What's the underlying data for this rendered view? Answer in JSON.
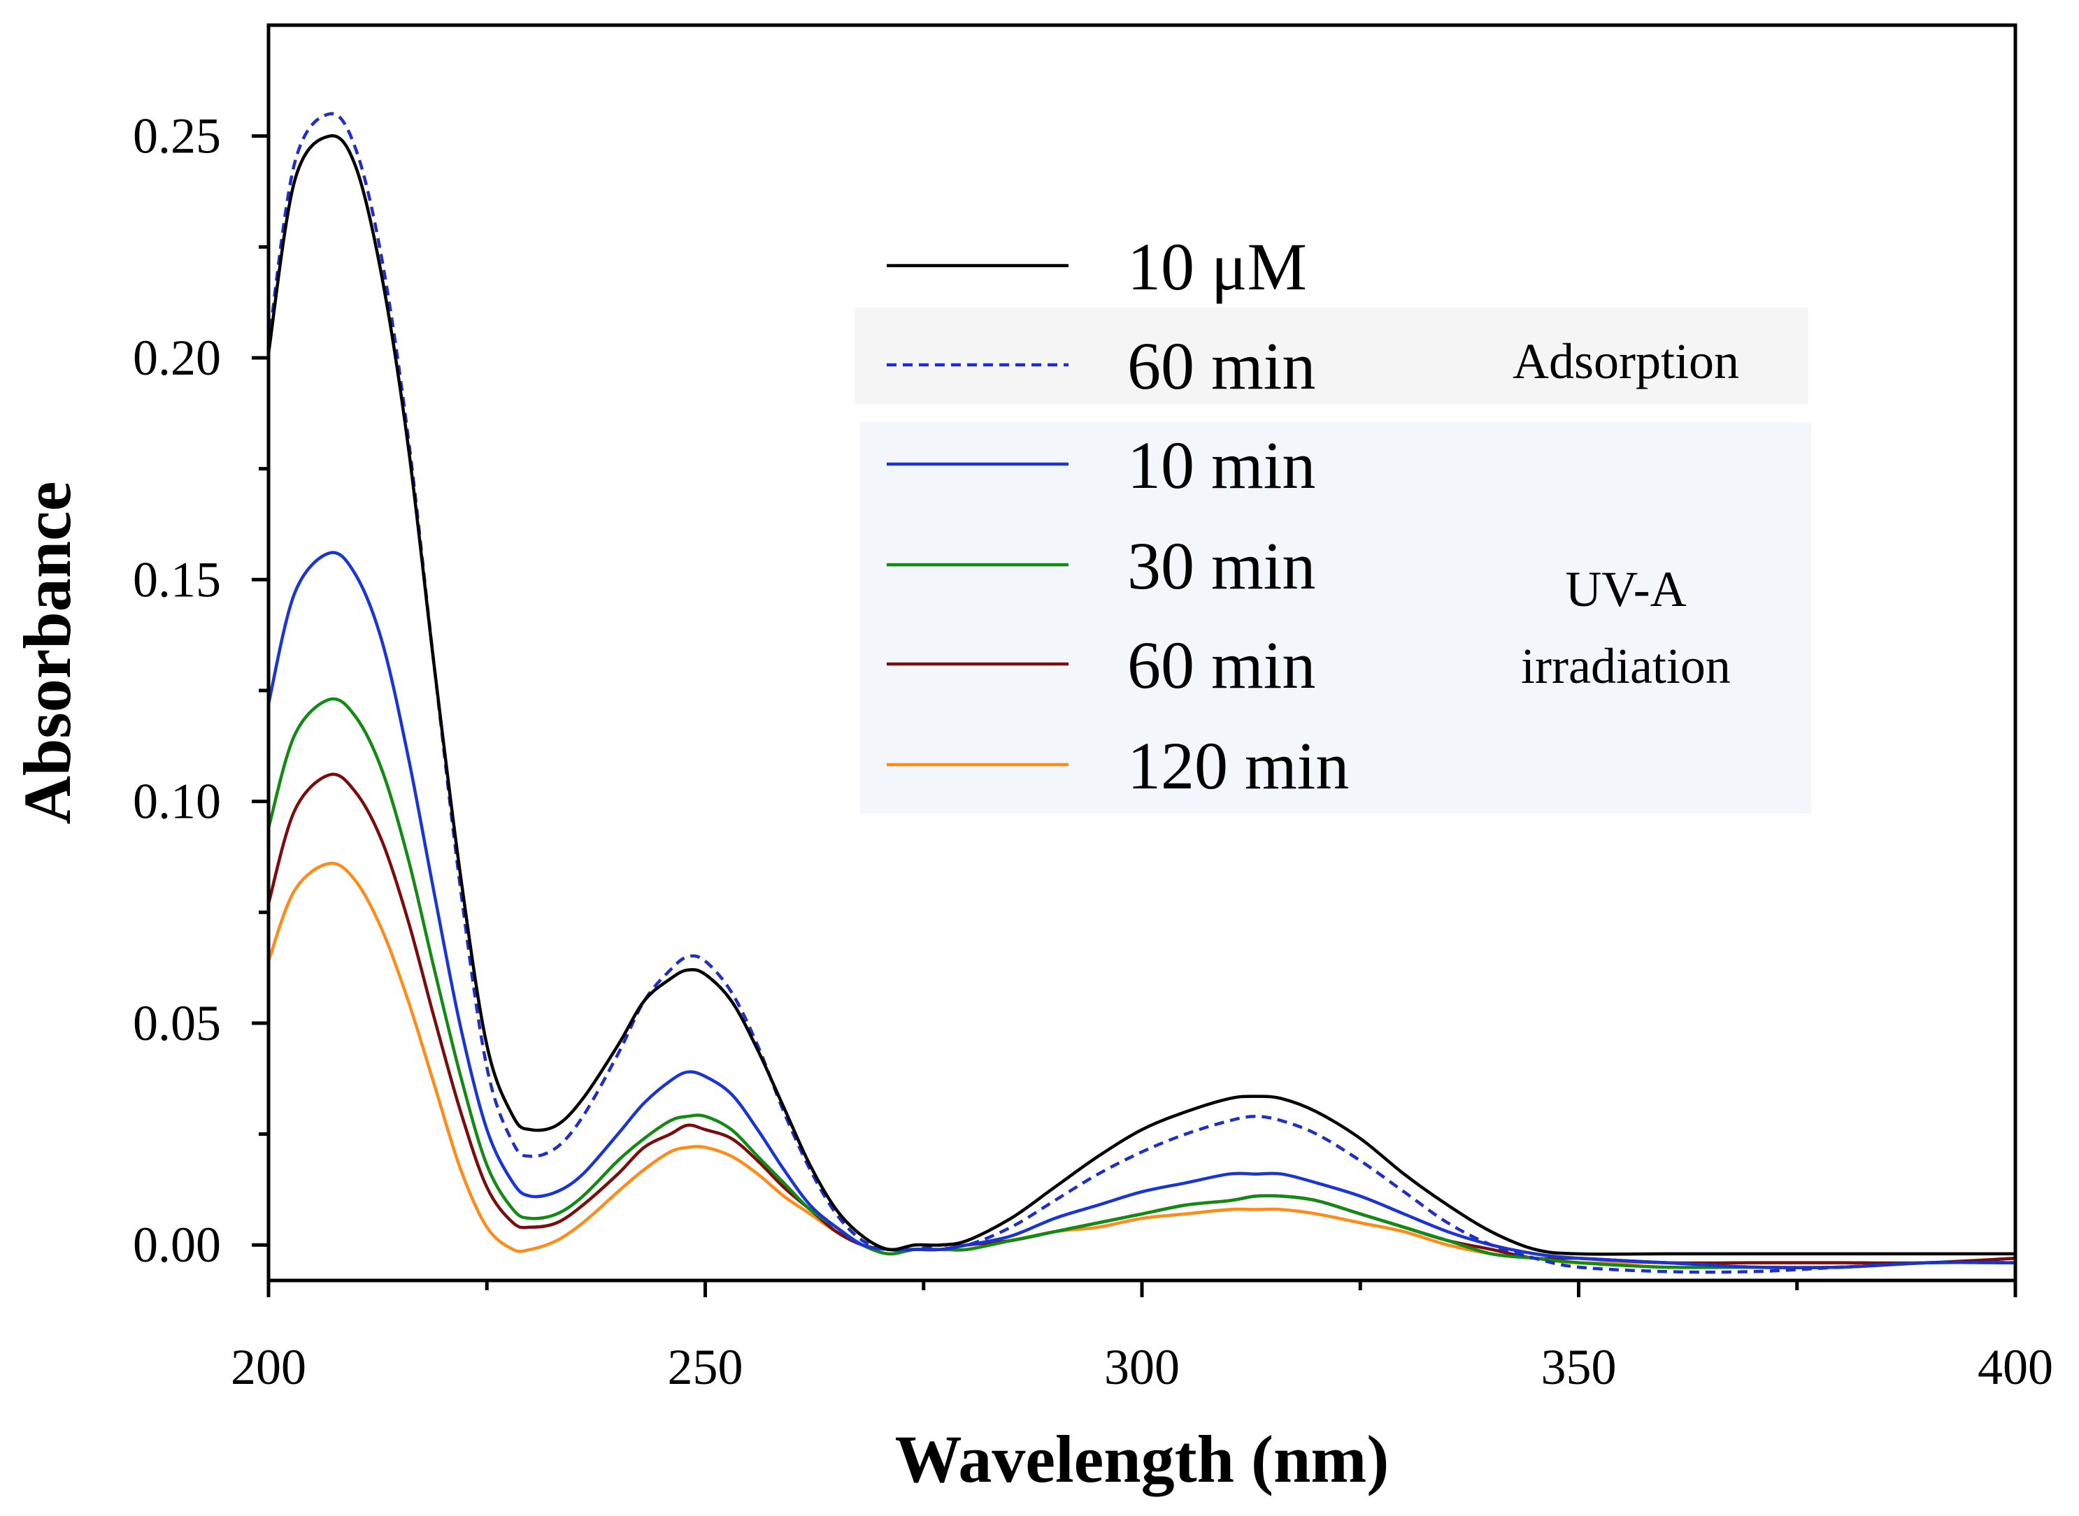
{
  "chart_data": {
    "type": "line",
    "title": "",
    "xlabel": "Wavelength (nm)",
    "ylabel": "Absorbance",
    "xlim": [
      200,
      400
    ],
    "ylim": [
      -0.008,
      0.275
    ],
    "xticks": [
      200,
      250,
      300,
      350,
      400
    ],
    "xtick_labels": [
      "200",
      "250",
      "300",
      "350",
      "400"
    ],
    "yticks": [
      0.0,
      0.05,
      0.1,
      0.15,
      0.2,
      0.25
    ],
    "ytick_labels": [
      "0.00",
      "0.05",
      "0.10",
      "0.15",
      "0.20",
      "0.25"
    ],
    "grid": false,
    "legend_position": "upper-right",
    "legend_groups": [
      {
        "label": "Adsorption",
        "series_indices": [
          1
        ]
      },
      {
        "label": "UV-A\nirradiation",
        "lines": [
          "UV-A",
          "irradiation"
        ],
        "series_indices": [
          2,
          3,
          4,
          5
        ]
      }
    ],
    "series": [
      {
        "name": "10 μM",
        "color": "#000000",
        "dash": "solid",
        "x": [
          200,
          203,
          207,
          210,
          213,
          216,
          219,
          222,
          225,
          228,
          230,
          233,
          236,
          240,
          243,
          246,
          248,
          250,
          253,
          256,
          259,
          262,
          265,
          268,
          271,
          274,
          277,
          280,
          285,
          290,
          295,
          300,
          305,
          310,
          313,
          316,
          320,
          325,
          330,
          335,
          340,
          345,
          350,
          360,
          370,
          380,
          390,
          400
        ],
        "y": [
          0.201,
          0.24,
          0.25,
          0.243,
          0.218,
          0.18,
          0.13,
          0.083,
          0.045,
          0.029,
          0.026,
          0.027,
          0.033,
          0.045,
          0.055,
          0.06,
          0.062,
          0.061,
          0.055,
          0.044,
          0.031,
          0.018,
          0.008,
          0.002,
          -0.001,
          0.0,
          0.0,
          0.001,
          0.006,
          0.013,
          0.02,
          0.026,
          0.03,
          0.033,
          0.0335,
          0.033,
          0.03,
          0.024,
          0.016,
          0.009,
          0.003,
          -0.001,
          -0.002,
          -0.002,
          -0.002,
          -0.002,
          -0.002,
          -0.002
        ]
      },
      {
        "name": "60 min",
        "color": "#1f2fc4",
        "dash": "dashed",
        "x": [
          200,
          203,
          207,
          210,
          213,
          216,
          219,
          222,
          225,
          228,
          230,
          233,
          236,
          240,
          243,
          246,
          248,
          250,
          253,
          256,
          259,
          262,
          265,
          268,
          271,
          274,
          277,
          280,
          285,
          290,
          295,
          300,
          305,
          310,
          313,
          316,
          320,
          325,
          330,
          335,
          340,
          345,
          350,
          360,
          370,
          380,
          390,
          400
        ],
        "y": [
          0.203,
          0.244,
          0.255,
          0.247,
          0.222,
          0.182,
          0.13,
          0.08,
          0.04,
          0.023,
          0.02,
          0.022,
          0.029,
          0.043,
          0.055,
          0.062,
          0.065,
          0.064,
          0.057,
          0.045,
          0.03,
          0.017,
          0.007,
          0.001,
          -0.001,
          -0.001,
          0.0,
          0.0,
          0.004,
          0.01,
          0.016,
          0.021,
          0.025,
          0.028,
          0.029,
          0.028,
          0.025,
          0.019,
          0.012,
          0.005,
          0.0,
          -0.003,
          -0.005,
          -0.006,
          -0.006,
          -0.005,
          -0.004,
          -0.004
        ]
      },
      {
        "name": "10 min",
        "color": "#1a35d4",
        "dash": "solid",
        "x": [
          200,
          203,
          207,
          210,
          213,
          216,
          219,
          222,
          225,
          228,
          230,
          233,
          236,
          240,
          243,
          246,
          248,
          250,
          253,
          256,
          259,
          262,
          265,
          268,
          271,
          274,
          277,
          280,
          285,
          290,
          295,
          300,
          305,
          310,
          313,
          316,
          320,
          325,
          330,
          335,
          340,
          345,
          350,
          360,
          370,
          380,
          390,
          400
        ],
        "y": [
          0.122,
          0.147,
          0.156,
          0.151,
          0.136,
          0.11,
          0.079,
          0.049,
          0.026,
          0.014,
          0.011,
          0.012,
          0.016,
          0.025,
          0.032,
          0.037,
          0.039,
          0.038,
          0.034,
          0.026,
          0.017,
          0.009,
          0.004,
          0.0,
          -0.001,
          -0.001,
          -0.001,
          0.0,
          0.002,
          0.006,
          0.009,
          0.012,
          0.014,
          0.016,
          0.016,
          0.016,
          0.014,
          0.011,
          0.007,
          0.003,
          0.0,
          -0.002,
          -0.003,
          -0.004,
          -0.005,
          -0.005,
          -0.004,
          -0.004
        ]
      },
      {
        "name": "30 min",
        "color": "#138a13",
        "dash": "solid",
        "x": [
          200,
          203,
          207,
          210,
          213,
          216,
          219,
          222,
          225,
          228,
          230,
          233,
          236,
          240,
          243,
          246,
          248,
          250,
          253,
          256,
          259,
          262,
          265,
          268,
          271,
          274,
          277,
          280,
          285,
          290,
          295,
          300,
          305,
          310,
          313,
          316,
          320,
          325,
          330,
          335,
          340,
          345,
          350,
          360,
          370,
          380,
          390,
          400
        ],
        "y": [
          0.094,
          0.115,
          0.123,
          0.119,
          0.107,
          0.087,
          0.062,
          0.038,
          0.018,
          0.008,
          0.006,
          0.007,
          0.011,
          0.019,
          0.024,
          0.028,
          0.029,
          0.029,
          0.026,
          0.02,
          0.014,
          0.008,
          0.004,
          0.0,
          -0.002,
          -0.001,
          -0.001,
          -0.001,
          0.001,
          0.003,
          0.005,
          0.007,
          0.009,
          0.01,
          0.011,
          0.011,
          0.01,
          0.007,
          0.004,
          0.001,
          -0.002,
          -0.003,
          -0.004,
          -0.005,
          -0.005,
          -0.005,
          -0.004,
          -0.004
        ]
      },
      {
        "name": "60 min",
        "color": "#7a0d0d",
        "dash": "solid",
        "x": [
          200,
          203,
          207,
          210,
          213,
          216,
          219,
          222,
          225,
          228,
          230,
          233,
          236,
          240,
          243,
          246,
          248,
          250,
          253,
          256,
          259,
          262,
          265,
          268,
          271,
          274,
          277,
          280,
          285,
          290,
          295,
          300,
          305,
          310,
          313,
          316,
          320,
          325,
          330,
          335,
          340,
          345,
          350,
          360,
          370,
          380,
          390,
          400
        ],
        "y": [
          0.077,
          0.098,
          0.106,
          0.102,
          0.091,
          0.073,
          0.051,
          0.03,
          0.013,
          0.005,
          0.004,
          0.005,
          0.009,
          0.016,
          0.022,
          0.025,
          0.027,
          0.026,
          0.024,
          0.019,
          0.013,
          0.008,
          0.003,
          0.0,
          -0.001,
          -0.001,
          -0.001,
          0.0,
          0.001,
          0.003,
          0.005,
          0.007,
          0.009,
          0.01,
          0.011,
          0.011,
          0.01,
          0.007,
          0.004,
          0.001,
          -0.001,
          -0.003,
          -0.003,
          -0.004,
          -0.004,
          -0.004,
          -0.004,
          -0.003
        ]
      },
      {
        "name": "120 min",
        "color": "#ff8c1a",
        "dash": "solid",
        "x": [
          200,
          203,
          207,
          210,
          213,
          216,
          219,
          222,
          225,
          228,
          230,
          233,
          236,
          240,
          243,
          246,
          248,
          250,
          253,
          256,
          259,
          262,
          265,
          268,
          271,
          274,
          277,
          280,
          285,
          290,
          295,
          300,
          305,
          310,
          313,
          316,
          320,
          325,
          330,
          335,
          340,
          345,
          350,
          360,
          370,
          380,
          390,
          400
        ],
        "y": [
          0.064,
          0.08,
          0.086,
          0.082,
          0.071,
          0.055,
          0.036,
          0.017,
          0.004,
          -0.001,
          -0.001,
          0.001,
          0.005,
          0.012,
          0.017,
          0.021,
          0.022,
          0.022,
          0.02,
          0.016,
          0.011,
          0.007,
          0.003,
          0.0,
          -0.001,
          -0.001,
          -0.001,
          0.0,
          0.001,
          0.003,
          0.004,
          0.006,
          0.007,
          0.008,
          0.008,
          0.008,
          0.007,
          0.005,
          0.003,
          0.0,
          -0.002,
          -0.003,
          -0.004,
          -0.004,
          -0.005,
          -0.005,
          -0.004,
          -0.003
        ]
      }
    ]
  }
}
